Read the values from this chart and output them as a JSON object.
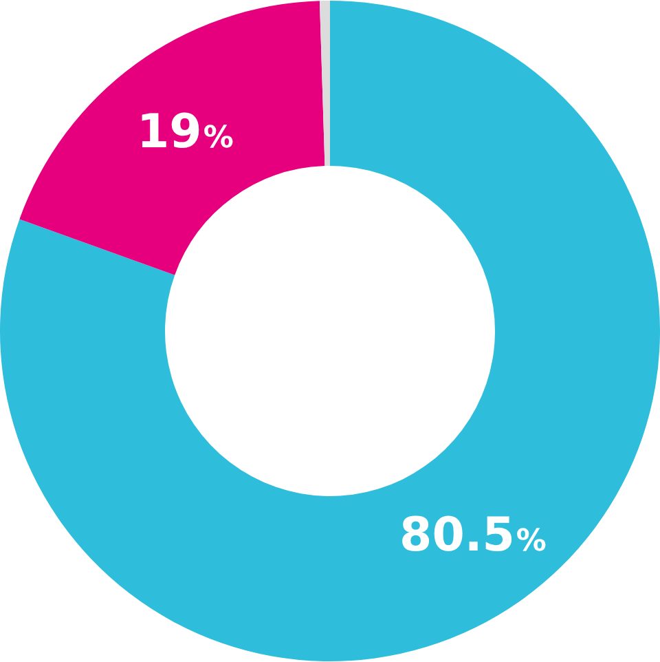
{
  "chart_data": {
    "type": "donut",
    "categories": [
      null,
      null,
      null
    ],
    "values": [
      80.5,
      19,
      0.5
    ],
    "colors": [
      "#2ebedc",
      "#e6007e",
      "#dcdcdc"
    ],
    "value_labels": [
      "80.5%",
      "19%",
      null
    ],
    "legend": false
  }
}
